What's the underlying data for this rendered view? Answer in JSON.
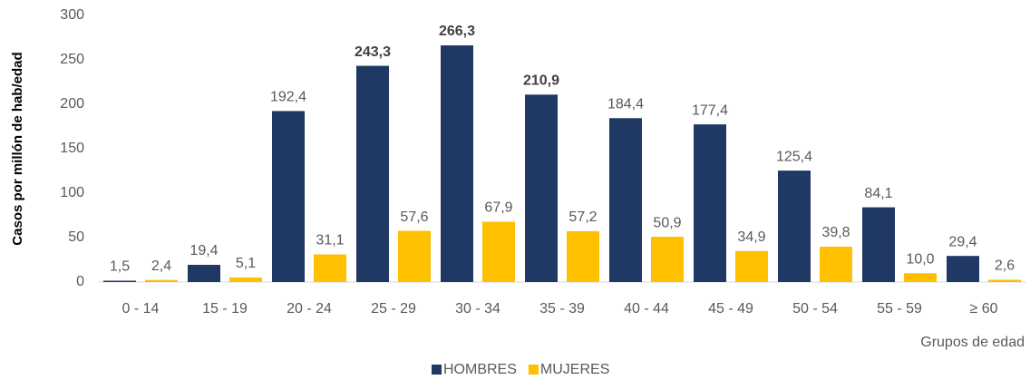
{
  "chart_data": {
    "type": "bar",
    "y_label": "Casos por millón de hab/edad",
    "x_label": "Grupos de edad",
    "categories": [
      "0 - 14",
      "15 - 19",
      "20 - 24",
      "25 - 29",
      "30 - 34",
      "35 - 39",
      "40 - 44",
      "45 - 49",
      "50 - 54",
      "55 - 59",
      "≥ 60"
    ],
    "series": [
      {
        "name": "HOMBRES",
        "color": "#1f3864",
        "values": [
          1.5,
          19.4,
          192.4,
          243.3,
          266.3,
          210.9,
          184.4,
          177.4,
          125.4,
          84.1,
          29.4
        ],
        "value_labels": [
          "1,5",
          "19,4",
          "192,4",
          "243,3",
          "266,3",
          "210,9",
          "184,4",
          "177,4",
          "125,4",
          "84,1",
          "29,4"
        ],
        "bold_labels": [
          3,
          4,
          5
        ]
      },
      {
        "name": "MUJERES",
        "color": "#ffc000",
        "values": [
          2.4,
          5.1,
          31.1,
          57.6,
          67.9,
          57.2,
          50.9,
          34.9,
          39.8,
          10.0,
          2.6
        ],
        "value_labels": [
          "2,4",
          "5,1",
          "31,1",
          "57,6",
          "67,9",
          "57,2",
          "50,9",
          "34,9",
          "39,8",
          "10,0",
          "2,6"
        ]
      }
    ],
    "ylim": [
      0,
      300
    ],
    "yticks": [
      0,
      50,
      100,
      150,
      200,
      250,
      300
    ],
    "grid": false,
    "legend": "bottom"
  }
}
